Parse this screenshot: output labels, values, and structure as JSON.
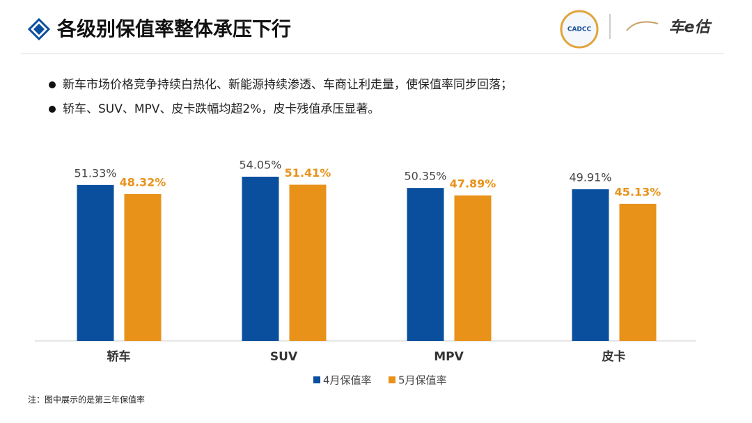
{
  "header": {
    "title": "各级别保值率整体承压下行",
    "logo_org": "CADCC",
    "logo_brand": "车e估"
  },
  "bullets": [
    "新车市场价格竞争持续白热化、新能源持续渗透、车商让利走量，使保值率同步回落；",
    "轿车、SUV、MPV、皮卡跌幅均超2%，皮卡残值承压显著。"
  ],
  "note": "注：图中展示的是第三年保值率",
  "chart_data": {
    "type": "bar",
    "categories": [
      "轿车",
      "SUV",
      "MPV",
      "皮卡"
    ],
    "series": [
      {
        "name": "4月保值率",
        "color": "#0a4f9e",
        "values": [
          51.33,
          54.05,
          50.35,
          49.91
        ],
        "value_labels": [
          "51.33%",
          "54.05%",
          "50.35%",
          "49.91%"
        ]
      },
      {
        "name": "5月保值率",
        "color": "#e8921a",
        "values": [
          48.32,
          51.41,
          47.89,
          45.13
        ],
        "value_labels": [
          "48.32%",
          "51.41%",
          "47.89%",
          "45.13%"
        ]
      }
    ],
    "ylim": [
      0,
      60
    ]
  }
}
